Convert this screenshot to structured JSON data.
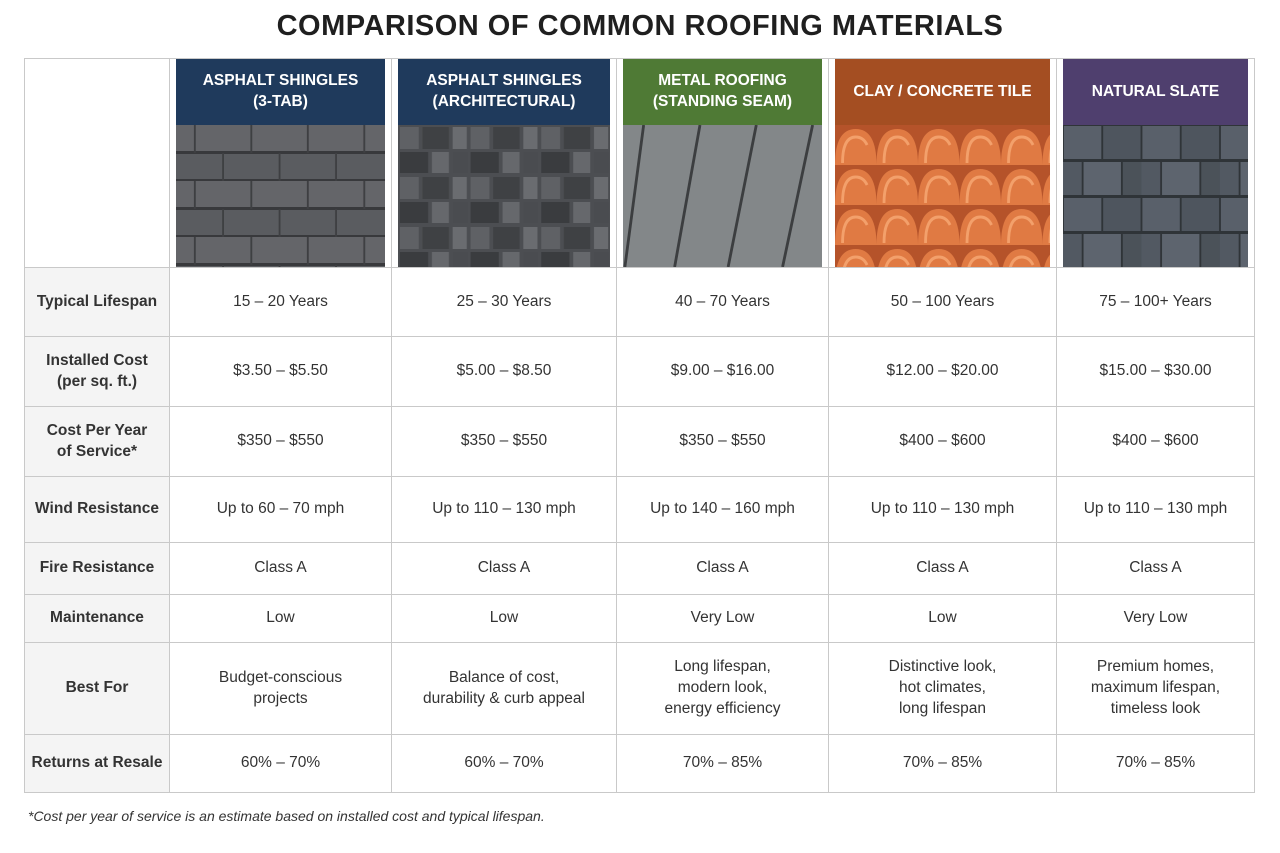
{
  "title": "COMPARISON OF COMMON ROOFING MATERIALS",
  "columns": [
    {
      "label": "ASPHALT SHINGLES\n(3-TAB)",
      "color": "#1f3a5c",
      "texture": "shingle-3tab-texture"
    },
    {
      "label": "ASPHALT SHINGLES\n(ARCHITECTURAL)",
      "color": "#1f3a5c",
      "texture": "shingle-architectural-texture"
    },
    {
      "label": "METAL ROOFING\n(STANDING SEAM)",
      "color": "#4f7a35",
      "texture": "metal-standing-seam-texture"
    },
    {
      "label": "CLAY / CONCRETE TILE",
      "color": "#a44e22",
      "texture": "clay-tile-texture"
    },
    {
      "label": "NATURAL SLATE",
      "color": "#4f3f6e",
      "texture": "natural-slate-texture"
    }
  ],
  "rows": [
    {
      "label": "Typical Lifespan",
      "values": [
        "15 – 20 Years",
        "25 – 30 Years",
        "40 – 70 Years",
        "50 – 100 Years",
        "75 – 100+ Years"
      ]
    },
    {
      "label": "Installed Cost\n(per sq. ft.)",
      "values": [
        "$3.50 – $5.50",
        "$5.00 – $8.50",
        "$9.00 – $16.00",
        "$12.00 – $20.00",
        "$15.00 – $30.00"
      ]
    },
    {
      "label": "Cost Per Year\nof Service*",
      "values": [
        "$350 – $550",
        "$350 – $550",
        "$350 – $550",
        "$400 – $600",
        "$400 – $600"
      ]
    },
    {
      "label": "Wind Resistance",
      "values": [
        "Up to 60 – 70 mph",
        "Up to 110 – 130 mph",
        "Up to 140 – 160 mph",
        "Up to 110 – 130 mph",
        "Up to 110 – 130 mph"
      ]
    },
    {
      "label": "Fire Resistance",
      "values": [
        "Class A",
        "Class A",
        "Class A",
        "Class A",
        "Class A"
      ]
    },
    {
      "label": "Maintenance",
      "values": [
        "Low",
        "Low",
        "Very Low",
        "Low",
        "Very Low"
      ]
    },
    {
      "label": "Best For",
      "values": [
        "Budget-conscious\nprojects",
        "Balance of cost,\ndurability & curb appeal",
        "Long lifespan,\nmodern look,\nenergy efficiency",
        "Distinctive look,\nhot climates,\nlong lifespan",
        "Premium homes,\nmaximum lifespan,\ntimeless look"
      ]
    },
    {
      "label": "Returns at Resale",
      "values": [
        "60% – 70%",
        "60% – 70%",
        "70% – 85%",
        "70% – 85%",
        "70% – 85%"
      ]
    }
  ],
  "footnote": "*Cost per year of service is an estimate based on installed cost and typical lifespan."
}
